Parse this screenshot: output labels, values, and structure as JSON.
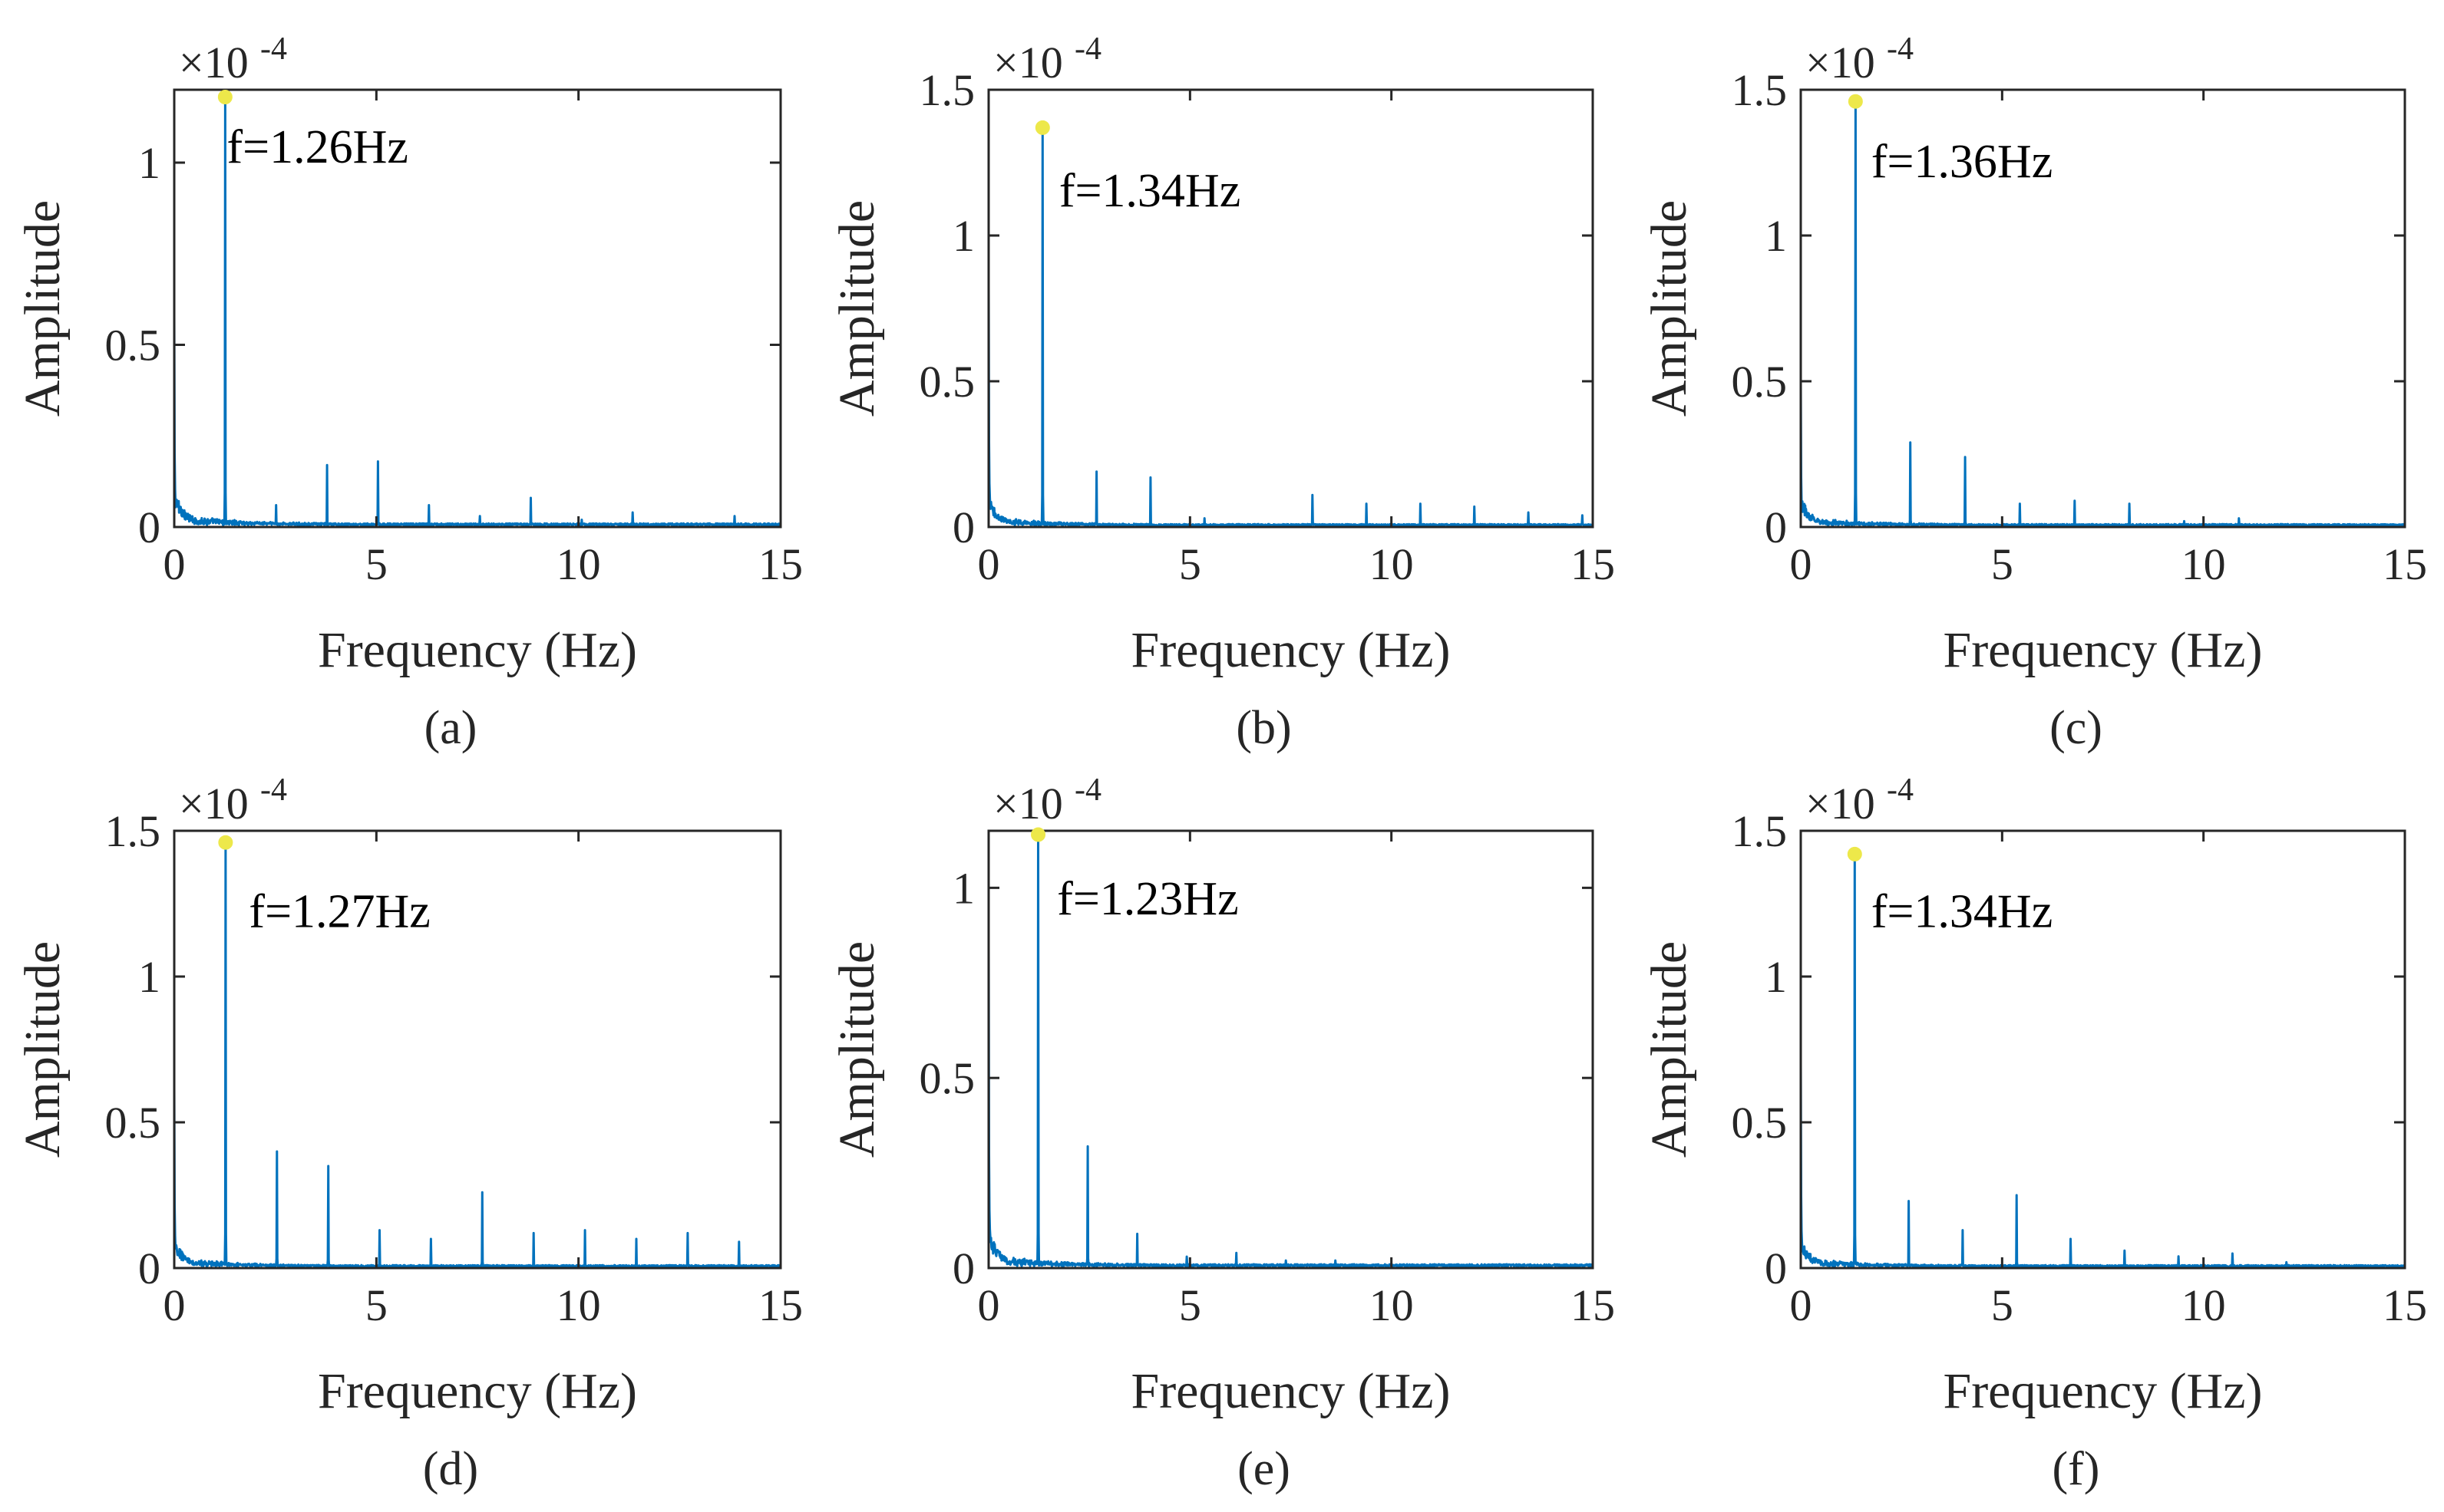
{
  "colors": {
    "line": "#0072BD",
    "marker": "#EDE84A",
    "axis": "#262626",
    "background": "#FFFFFF"
  },
  "chart_data": [
    {
      "type": "line",
      "caption": "(a)",
      "xlabel": "Frequency (Hz)",
      "ylabel": "Amplitude",
      "exponent": "-4",
      "xlim": [
        0,
        15
      ],
      "ylim": [
        0,
        1.2
      ],
      "xticks": [
        "0",
        "5",
        "10",
        "15"
      ],
      "yticks": [
        {
          "v": 0,
          "label": "0"
        },
        {
          "v": 0.5,
          "label": "0.5"
        },
        {
          "v": 1,
          "label": "1"
        }
      ],
      "peak": {
        "x": 1.26,
        "y": 1.18
      },
      "annotation": "f=1.26Hz",
      "ann_at": {
        "x": 1.3,
        "y": 1.0
      },
      "dc": 0.58,
      "harmonics": [
        [
          2.52,
          0.06
        ],
        [
          3.78,
          0.17
        ],
        [
          5.04,
          0.18
        ],
        [
          6.3,
          0.06
        ],
        [
          7.56,
          0.03
        ],
        [
          8.82,
          0.08
        ],
        [
          10.08,
          0.02
        ],
        [
          11.34,
          0.04
        ],
        [
          12.6,
          0.01
        ],
        [
          13.86,
          0.03
        ]
      ]
    },
    {
      "type": "line",
      "caption": "(b)",
      "xlabel": "Frequency (Hz)",
      "ylabel": "Amplitude",
      "exponent": "-4",
      "xlim": [
        0,
        15
      ],
      "ylim": [
        0,
        1.5
      ],
      "xticks": [
        "0",
        "5",
        "10",
        "15"
      ],
      "yticks": [
        {
          "v": 0,
          "label": "0"
        },
        {
          "v": 0.5,
          "label": "0.5"
        },
        {
          "v": 1,
          "label": "1"
        },
        {
          "v": 1.5,
          "label": "1.5"
        }
      ],
      "peak": {
        "x": 1.34,
        "y": 1.37
      },
      "annotation": "f=1.34Hz",
      "ann_at": {
        "x": 1.75,
        "y": 1.1
      },
      "dc": 0.83,
      "harmonics": [
        [
          2.68,
          0.19
        ],
        [
          4.02,
          0.17
        ],
        [
          5.36,
          0.03
        ],
        [
          8.04,
          0.11
        ],
        [
          9.38,
          0.08
        ],
        [
          10.72,
          0.08
        ],
        [
          12.06,
          0.07
        ],
        [
          13.4,
          0.05
        ],
        [
          14.74,
          0.04
        ]
      ]
    },
    {
      "type": "line",
      "caption": "(c)",
      "xlabel": "Frequency (Hz)",
      "ylabel": "Amplitude",
      "exponent": "-4",
      "xlim": [
        0,
        15
      ],
      "ylim": [
        0,
        1.5
      ],
      "xticks": [
        "0",
        "5",
        "10",
        "15"
      ],
      "yticks": [
        {
          "v": 0,
          "label": "0"
        },
        {
          "v": 0.5,
          "label": "0.5"
        },
        {
          "v": 1,
          "label": "1"
        },
        {
          "v": 1.5,
          "label": "1.5"
        }
      ],
      "peak": {
        "x": 1.36,
        "y": 1.46
      },
      "annotation": "f=1.36Hz",
      "ann_at": {
        "x": 1.75,
        "y": 1.2
      },
      "dc": 0.49,
      "harmonics": [
        [
          2.72,
          0.29
        ],
        [
          4.08,
          0.24
        ],
        [
          5.44,
          0.08
        ],
        [
          6.8,
          0.09
        ],
        [
          8.16,
          0.08
        ],
        [
          9.52,
          0.02
        ],
        [
          10.88,
          0.03
        ]
      ]
    },
    {
      "type": "line",
      "caption": "(d)",
      "xlabel": "Frequency (Hz)",
      "ylabel": "Amplitude",
      "exponent": "-4",
      "xlim": [
        0,
        15
      ],
      "ylim": [
        0,
        1.5
      ],
      "xticks": [
        "0",
        "5",
        "10",
        "15"
      ],
      "yticks": [
        {
          "v": 0,
          "label": "0"
        },
        {
          "v": 0.5,
          "label": "0.5"
        },
        {
          "v": 1,
          "label": "1"
        },
        {
          "v": 1.5,
          "label": "1.5"
        }
      ],
      "peak": {
        "x": 1.27,
        "y": 1.46
      },
      "annotation": "f=1.27Hz",
      "ann_at": {
        "x": 1.85,
        "y": 1.17
      },
      "dc": 0.62,
      "harmonics": [
        [
          2.54,
          0.4
        ],
        [
          3.81,
          0.35
        ],
        [
          5.08,
          0.13
        ],
        [
          6.35,
          0.1
        ],
        [
          7.62,
          0.26
        ],
        [
          8.89,
          0.12
        ],
        [
          10.16,
          0.13
        ],
        [
          11.43,
          0.1
        ],
        [
          12.7,
          0.12
        ],
        [
          13.97,
          0.09
        ]
      ]
    },
    {
      "type": "line",
      "caption": "(e)",
      "xlabel": "Frequency (Hz)",
      "ylabel": "Amplitude",
      "exponent": "-4",
      "xlim": [
        0,
        15
      ],
      "ylim": [
        0,
        1.15
      ],
      "xticks": [
        "0",
        "5",
        "10",
        "15"
      ],
      "yticks": [
        {
          "v": 0,
          "label": "0"
        },
        {
          "v": 0.5,
          "label": "0.5"
        },
        {
          "v": 1,
          "label": "1"
        }
      ],
      "peak": {
        "x": 1.23,
        "y": 1.14
      },
      "annotation": "f=1.23Hz",
      "ann_at": {
        "x": 1.7,
        "y": 0.93
      },
      "dc": 0.85,
      "harmonics": [
        [
          2.46,
          0.32
        ],
        [
          3.69,
          0.09
        ],
        [
          4.92,
          0.03
        ],
        [
          6.15,
          0.04
        ],
        [
          7.38,
          0.02
        ],
        [
          8.61,
          0.02
        ],
        [
          9.84,
          0.01
        ],
        [
          11.07,
          0.01
        ]
      ]
    },
    {
      "type": "line",
      "caption": "(f)",
      "xlabel": "Frequency (Hz)",
      "ylabel": "Amplitude",
      "exponent": "-4",
      "xlim": [
        0,
        15
      ],
      "ylim": [
        0,
        1.5
      ],
      "xticks": [
        "0",
        "5",
        "10",
        "15"
      ],
      "yticks": [
        {
          "v": 0,
          "label": "0"
        },
        {
          "v": 0.5,
          "label": "0.5"
        },
        {
          "v": 1,
          "label": "1"
        },
        {
          "v": 1.5,
          "label": "1.5"
        }
      ],
      "peak": {
        "x": 1.34,
        "y": 1.42
      },
      "annotation": "f=1.34Hz",
      "ann_at": {
        "x": 1.75,
        "y": 1.17
      },
      "dc": 0.71,
      "harmonics": [
        [
          2.68,
          0.23
        ],
        [
          4.02,
          0.13
        ],
        [
          5.36,
          0.25
        ],
        [
          6.7,
          0.1
        ],
        [
          8.04,
          0.06
        ],
        [
          9.38,
          0.04
        ],
        [
          10.72,
          0.05
        ],
        [
          12.06,
          0.02
        ],
        [
          13.4,
          0.01
        ]
      ]
    }
  ]
}
